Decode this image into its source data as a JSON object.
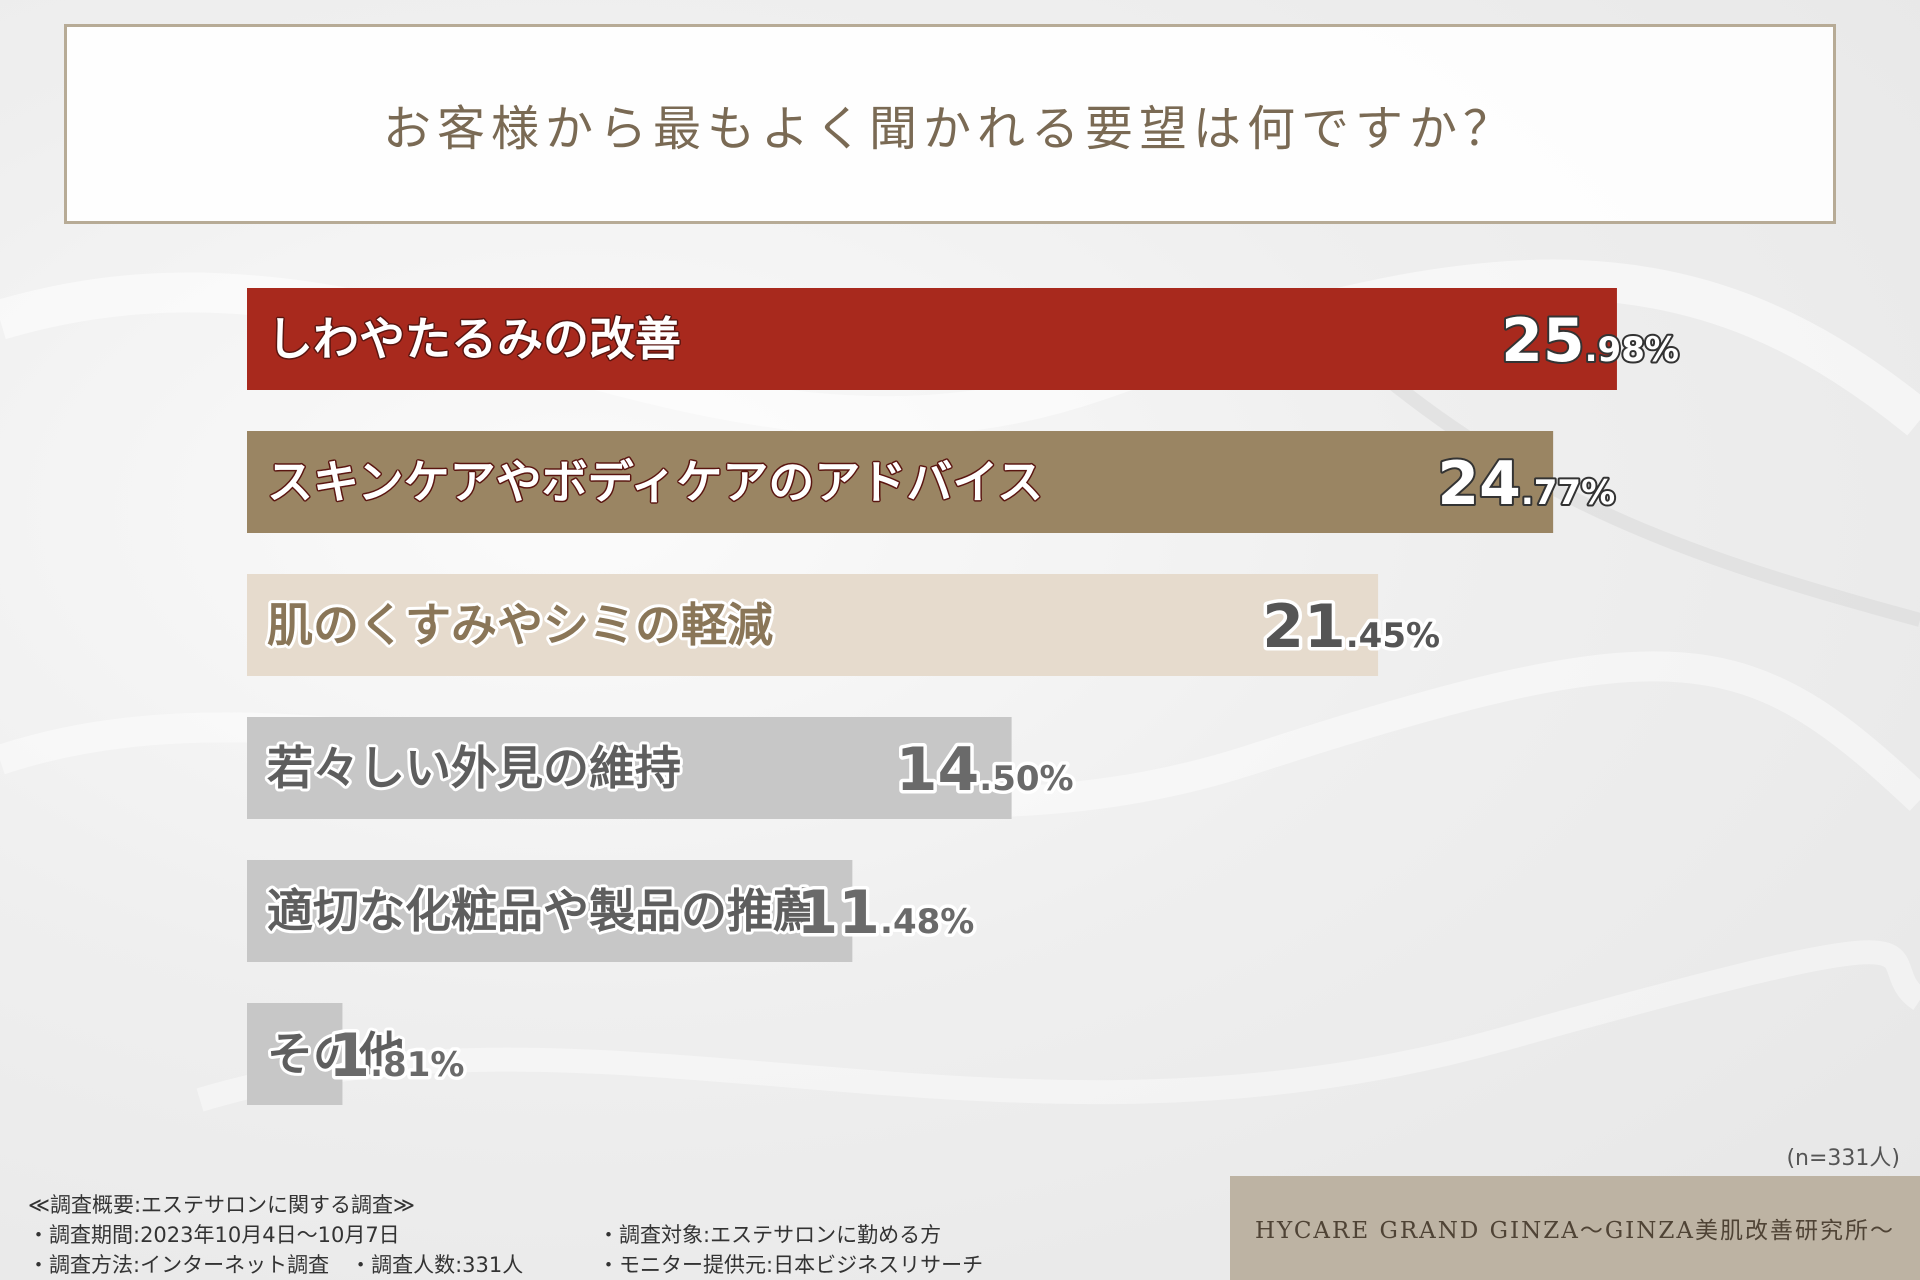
{
  "title": "お客様から最もよく聞かれる要望は何ですか？",
  "chart_data": {
    "type": "bar",
    "orientation": "horizontal",
    "categories": [
      "しわやたるみの改善",
      "スキンケアやボディケアのアドバイス",
      "肌のくすみやシミの軽減",
      "若々しい外見の維持",
      "適切な化粧品や製品の推薦",
      "その他"
    ],
    "values": [
      25.98,
      24.77,
      21.45,
      14.5,
      11.48,
      1.81
    ],
    "value_labels": [
      {
        "int": "25",
        "dec": ".98%"
      },
      {
        "int": "24",
        "dec": ".77%"
      },
      {
        "int": "21",
        "dec": ".45%"
      },
      {
        "int": "14",
        "dec": ".50%"
      },
      {
        "int": "11",
        "dec": ".48%"
      },
      {
        "int": "1",
        "dec": ".81%"
      }
    ],
    "colors": [
      "#a8291d",
      "#9a8563",
      "#e6dbcd",
      "#c7c7c7",
      "#c7c7c7",
      "#c7c7c7"
    ],
    "label_colors": [
      "#ffffff",
      "#ffffff",
      "#8a7658",
      "#5e5e5e",
      "#5e5e5e",
      "#5e5e5e"
    ],
    "value_colors": [
      "#ffffff",
      "#ffffff",
      "#555555",
      "#6a6a6a",
      "#6a6a6a",
      "#6a6a6a"
    ],
    "xlim": [
      0,
      26
    ]
  },
  "sample_note": "(n=331人)",
  "survey": {
    "heading": "≪調査概要:エステサロンに関する調査≫",
    "period": "・調査期間:2023年10月4日〜10月7日",
    "method": "・調査方法:インターネット調査　・調査人数:331人",
    "target": "・調査対象:エステサロンに勤める方",
    "provider": "・モニター提供元:日本ビジネスリサーチ"
  },
  "brand": "HYCARE GRAND GINZA〜GINZA美肌改善研究所〜"
}
